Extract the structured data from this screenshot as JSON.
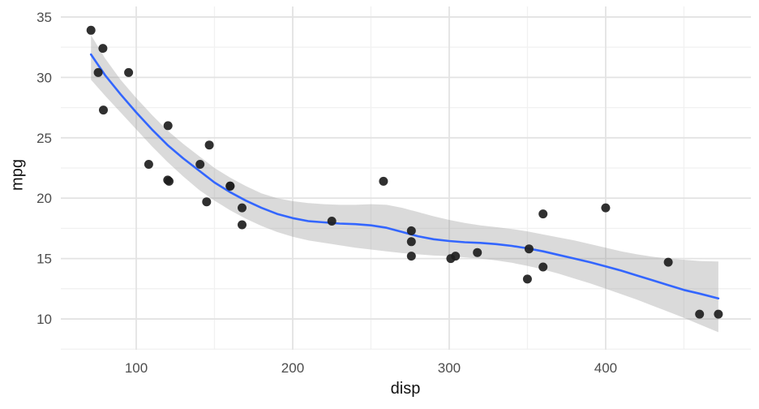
{
  "chart_data": {
    "type": "scatter",
    "title": "",
    "xlabel": "disp",
    "ylabel": "mpg",
    "grid": "major and minor, light gray on white",
    "legend_position": "none",
    "xlim": [
      51.8,
      492.8
    ],
    "ylim": [
      7.45,
      35.87
    ],
    "x_ticks": [
      100,
      200,
      300,
      400
    ],
    "x_minor_ticks": [
      150,
      250,
      350,
      450
    ],
    "y_ticks": [
      10,
      15,
      20,
      25,
      30,
      35
    ],
    "y_minor_ticks": [
      7.5,
      12.5,
      17.5,
      22.5,
      27.5,
      32.5
    ],
    "points": [
      [
        160,
        21.0
      ],
      [
        160,
        21.0
      ],
      [
        108,
        22.8
      ],
      [
        258,
        21.4
      ],
      [
        360,
        18.7
      ],
      [
        225,
        18.1
      ],
      [
        360,
        14.3
      ],
      [
        146.7,
        24.4
      ],
      [
        140.8,
        22.8
      ],
      [
        167.6,
        19.2
      ],
      [
        167.6,
        17.8
      ],
      [
        275.8,
        16.4
      ],
      [
        275.8,
        17.3
      ],
      [
        275.8,
        15.2
      ],
      [
        472,
        10.4
      ],
      [
        460,
        10.4
      ],
      [
        440,
        14.7
      ],
      [
        78.7,
        32.4
      ],
      [
        75.7,
        30.4
      ],
      [
        71.1,
        33.9
      ],
      [
        120.1,
        21.5
      ],
      [
        318,
        15.5
      ],
      [
        304,
        15.2
      ],
      [
        350,
        13.3
      ],
      [
        400,
        19.2
      ],
      [
        79,
        27.3
      ],
      [
        120.3,
        26.0
      ],
      [
        95.1,
        30.4
      ],
      [
        351,
        15.8
      ],
      [
        145,
        19.7
      ],
      [
        301,
        15.0
      ],
      [
        121,
        21.4
      ]
    ],
    "smooth_line": [
      [
        71.1,
        31.9
      ],
      [
        80,
        30.2
      ],
      [
        90,
        28.6
      ],
      [
        100,
        27.1
      ],
      [
        110,
        25.7
      ],
      [
        120,
        24.4
      ],
      [
        130,
        23.3
      ],
      [
        140,
        22.3
      ],
      [
        150,
        21.3
      ],
      [
        160,
        20.5
      ],
      [
        170,
        19.8
      ],
      [
        180,
        19.2
      ],
      [
        190,
        18.7
      ],
      [
        200,
        18.35
      ],
      [
        210,
        18.1
      ],
      [
        220,
        18.0
      ],
      [
        230,
        17.9
      ],
      [
        240,
        17.85
      ],
      [
        250,
        17.75
      ],
      [
        260,
        17.55
      ],
      [
        270,
        17.2
      ],
      [
        280,
        16.85
      ],
      [
        290,
        16.6
      ],
      [
        300,
        16.45
      ],
      [
        310,
        16.35
      ],
      [
        320,
        16.3
      ],
      [
        330,
        16.2
      ],
      [
        340,
        16.05
      ],
      [
        350,
        15.85
      ],
      [
        360,
        15.6
      ],
      [
        370,
        15.3
      ],
      [
        380,
        15.0
      ],
      [
        390,
        14.7
      ],
      [
        400,
        14.35
      ],
      [
        410,
        14.0
      ],
      [
        420,
        13.6
      ],
      [
        430,
        13.2
      ],
      [
        440,
        12.8
      ],
      [
        450,
        12.4
      ],
      [
        460,
        12.1
      ],
      [
        472,
        11.7
      ]
    ],
    "ribbon_upper": [
      [
        71.1,
        33.5
      ],
      [
        80,
        31.6
      ],
      [
        90,
        29.8
      ],
      [
        100,
        28.3
      ],
      [
        110,
        26.9
      ],
      [
        120,
        25.6
      ],
      [
        130,
        24.5
      ],
      [
        140,
        23.5
      ],
      [
        150,
        22.5
      ],
      [
        160,
        21.7
      ],
      [
        170,
        21.0
      ],
      [
        180,
        20.4
      ],
      [
        190,
        20.0
      ],
      [
        200,
        19.75
      ],
      [
        210,
        19.6
      ],
      [
        220,
        19.5
      ],
      [
        230,
        19.45
      ],
      [
        240,
        19.45
      ],
      [
        250,
        19.5
      ],
      [
        260,
        19.45
      ],
      [
        270,
        19.2
      ],
      [
        280,
        18.85
      ],
      [
        290,
        18.5
      ],
      [
        300,
        18.2
      ],
      [
        310,
        17.95
      ],
      [
        320,
        17.75
      ],
      [
        330,
        17.6
      ],
      [
        340,
        17.45
      ],
      [
        350,
        17.25
      ],
      [
        360,
        17.0
      ],
      [
        370,
        16.75
      ],
      [
        380,
        16.5
      ],
      [
        390,
        16.2
      ],
      [
        400,
        15.9
      ],
      [
        410,
        15.6
      ],
      [
        420,
        15.35
      ],
      [
        430,
        15.15
      ],
      [
        440,
        15.0
      ],
      [
        450,
        14.9
      ],
      [
        460,
        14.8
      ],
      [
        472,
        14.75
      ]
    ],
    "ribbon_lower": [
      [
        71.1,
        29.8
      ],
      [
        80,
        28.5
      ],
      [
        90,
        27.1
      ],
      [
        100,
        25.7
      ],
      [
        110,
        24.3
      ],
      [
        120,
        23.0
      ],
      [
        130,
        21.8
      ],
      [
        140,
        20.7
      ],
      [
        150,
        19.8
      ],
      [
        160,
        19.0
      ],
      [
        170,
        18.3
      ],
      [
        180,
        17.7
      ],
      [
        190,
        17.2
      ],
      [
        200,
        16.8
      ],
      [
        210,
        16.5
      ],
      [
        220,
        16.3
      ],
      [
        230,
        16.1
      ],
      [
        240,
        15.9
      ],
      [
        250,
        15.75
      ],
      [
        260,
        15.6
      ],
      [
        270,
        15.45
      ],
      [
        280,
        15.35
      ],
      [
        290,
        15.25
      ],
      [
        300,
        15.2
      ],
      [
        310,
        15.1
      ],
      [
        320,
        15.0
      ],
      [
        330,
        14.85
      ],
      [
        340,
        14.65
      ],
      [
        350,
        14.4
      ],
      [
        360,
        14.1
      ],
      [
        370,
        13.75
      ],
      [
        380,
        13.35
      ],
      [
        390,
        12.95
      ],
      [
        400,
        12.5
      ],
      [
        410,
        12.05
      ],
      [
        420,
        11.6
      ],
      [
        430,
        11.1
      ],
      [
        440,
        10.6
      ],
      [
        450,
        10.1
      ],
      [
        460,
        9.55
      ],
      [
        472,
        8.9
      ]
    ],
    "colors": {
      "background": "#ffffff",
      "point": "#1e1e1e",
      "smooth_line": "#3366ff",
      "ribbon": "#999999",
      "ribbon_opacity": 0.36,
      "grid_major": "#e3e3e3",
      "grid_minor": "#f1f1f1",
      "tick_label": "#4d4d4d",
      "axis_title": "#111111"
    }
  }
}
